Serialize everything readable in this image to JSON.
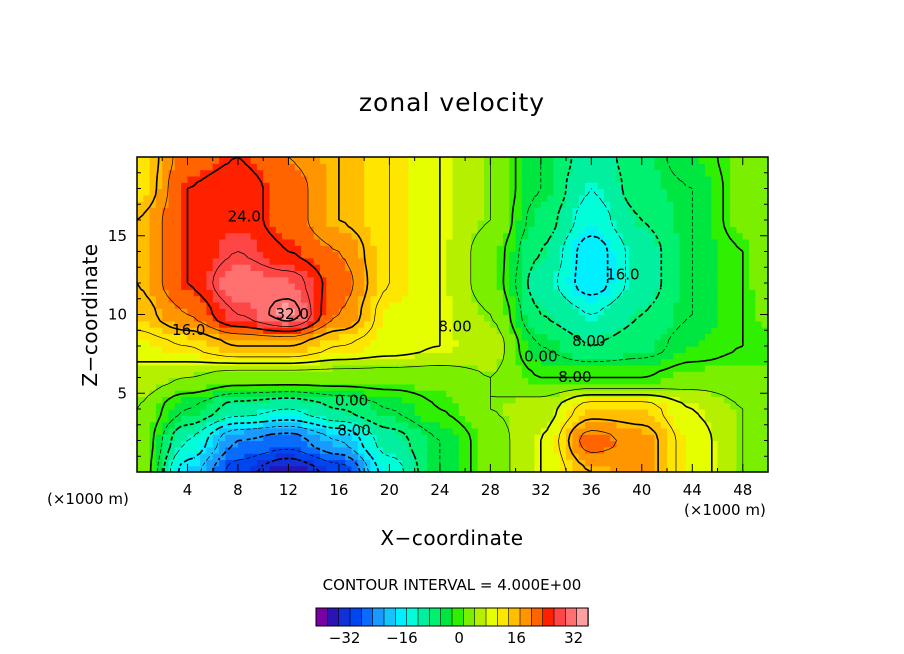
{
  "chart_data": {
    "type": "contour",
    "title": "zonal velocity",
    "xlabel": "X−coordinate",
    "ylabel": "Z−coordinate",
    "x_unit_label": "(×1000 m)",
    "y_unit_label": "(×1000 m)",
    "xlim": [
      0,
      50
    ],
    "ylim": [
      0,
      20
    ],
    "x_ticks": [
      4,
      8,
      12,
      16,
      20,
      24,
      28,
      32,
      36,
      40,
      44,
      48
    ],
    "y_ticks": [
      5,
      10,
      15
    ],
    "contour_interval_text": "CONTOUR INTERVAL = 4.000E+00",
    "contour_interval": 4,
    "negative_contours": "dashed",
    "contour_labels": [
      {
        "text": "24.0",
        "x": 8.5,
        "y": 16.2
      },
      {
        "text": "32.0",
        "x": 12.3,
        "y": 10.0
      },
      {
        "text": "16.0",
        "x": 4.1,
        "y": 9.0
      },
      {
        "text": "8.00",
        "x": 25.2,
        "y": 9.2
      },
      {
        "text": "0.00",
        "x": 17.0,
        "y": 4.5
      },
      {
        "text": "8.00",
        "x": 17.2,
        "y": 2.6
      },
      {
        "text": "16.0",
        "x": 38.5,
        "y": 12.5
      },
      {
        "text": "8.00",
        "x": 35.8,
        "y": 8.3
      },
      {
        "text": "0.00",
        "x": 32.0,
        "y": 7.3
      },
      {
        "text": "8.00",
        "x": 34.7,
        "y": 6.0
      }
    ],
    "colorbar": {
      "ticks": [
        "−32",
        "−16",
        "0",
        "16",
        "32"
      ],
      "levels": [
        -40,
        36
      ],
      "colors": [
        "#7b00a4",
        "#2a14b4",
        "#1030d8",
        "#0046f0",
        "#0a6cff",
        "#1a9aff",
        "#14c4ff",
        "#00f0ff",
        "#00ffd8",
        "#00f0a0",
        "#00f070",
        "#00e640",
        "#2ef000",
        "#7af000",
        "#b4f000",
        "#e6ff00",
        "#ffe600",
        "#ffbe00",
        "#ff9600",
        "#ff6400",
        "#ff2000",
        "#ff4646",
        "#ff7070",
        "#ffa0a0"
      ]
    },
    "value_grid": {
      "x": [
        0,
        4,
        8,
        12,
        16,
        20,
        24,
        28,
        32,
        36,
        40,
        44,
        48,
        50
      ],
      "z": [
        0,
        2,
        4,
        6,
        8,
        10,
        12,
        14,
        16,
        18,
        20
      ],
      "values": [
        [
          4,
          -18,
          -30,
          -36,
          -30,
          -14,
          -4,
          2,
          8,
          16,
          18,
          10,
          4,
          2
        ],
        [
          4,
          -12,
          -24,
          -26,
          -20,
          -10,
          -4,
          2,
          8,
          22,
          18,
          10,
          4,
          2
        ],
        [
          4,
          -4,
          -10,
          -12,
          -8,
          -4,
          0,
          4,
          6,
          14,
          14,
          8,
          4,
          2
        ],
        [
          6,
          4,
          2,
          2,
          2,
          2,
          2,
          4,
          0,
          0,
          0,
          2,
          2,
          2
        ],
        [
          10,
          12,
          16,
          16,
          12,
          10,
          8,
          6,
          -4,
          -8,
          -6,
          -2,
          0,
          0
        ],
        [
          14,
          20,
          28,
          34,
          20,
          10,
          8,
          4,
          -8,
          -12,
          -8,
          -4,
          0,
          2
        ],
        [
          16,
          24,
          32,
          30,
          22,
          12,
          8,
          2,
          -10,
          -18,
          -10,
          -4,
          0,
          4
        ],
        [
          16,
          24,
          28,
          24,
          20,
          12,
          8,
          2,
          -8,
          -18,
          -10,
          -4,
          0,
          4
        ],
        [
          16,
          24,
          26,
          22,
          16,
          12,
          8,
          4,
          -6,
          -14,
          -8,
          -4,
          2,
          4
        ],
        [
          12,
          24,
          26,
          22,
          16,
          12,
          8,
          4,
          -4,
          -12,
          -6,
          -4,
          2,
          4
        ],
        [
          12,
          22,
          24,
          20,
          16,
          12,
          8,
          4,
          -4,
          -10,
          -6,
          -2,
          2,
          4
        ]
      ]
    }
  }
}
